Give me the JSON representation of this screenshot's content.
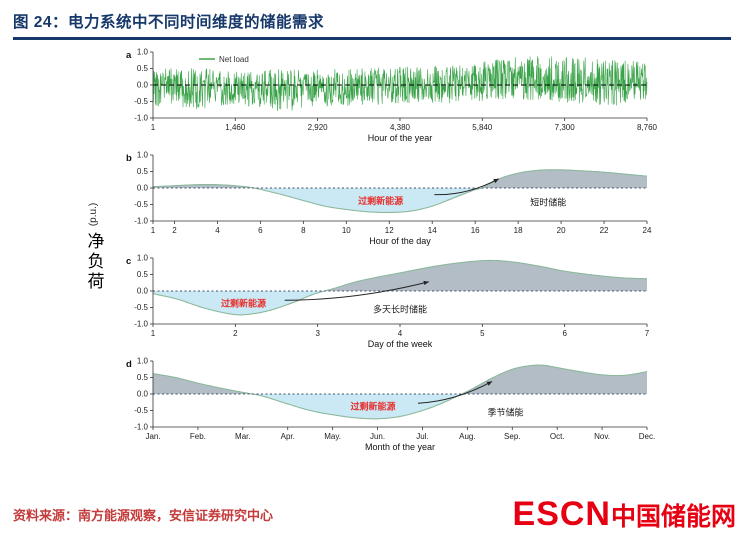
{
  "header": {
    "title": "图 24：电力系统中不同时间维度的储能需求"
  },
  "theme": {
    "accent": "#17386b",
    "source_red": "#c43b3b",
    "logo_red": "#e60012",
    "noise_green": "#2f9e3f",
    "fill_gray": "#b3bdc6",
    "fill_blue": "#cbe9f4",
    "curve_stroke": "#8cb99c",
    "axis_color": "#333333",
    "annotation_red": "#e8322f"
  },
  "axis_label": {
    "cn": "净负荷",
    "unit": "(p.u.)"
  },
  "footer": {
    "source": "资料来源：南方能源观察，安信证券研究中心",
    "logo_en": "ESCN",
    "logo_cn": "中国储能网"
  },
  "chart_data": [
    {
      "id": "a",
      "label": "a",
      "type": "line",
      "xlabel": "Hour of the year",
      "x_range": [
        1,
        8760
      ],
      "x_ticks": [
        {
          "v": 1,
          "t": "1"
        },
        {
          "v": 1460,
          "t": "1,460"
        },
        {
          "v": 2920,
          "t": "2,920"
        },
        {
          "v": 4380,
          "t": "4,380"
        },
        {
          "v": 5840,
          "t": "5,840"
        },
        {
          "v": 7300,
          "t": "7,300"
        },
        {
          "v": 8760,
          "t": "8,760"
        }
      ],
      "y_range": [
        -1,
        1
      ],
      "y_ticks": [
        {
          "v": 1,
          "t": "1.0"
        },
        {
          "v": 0.5,
          "t": "0.5"
        },
        {
          "v": 0,
          "t": "0.0"
        },
        {
          "v": -0.5,
          "t": "-0.5"
        },
        {
          "v": -1,
          "t": "-1.0"
        }
      ],
      "legend": [
        {
          "label": "Net load",
          "color": "#2f9e3f"
        }
      ],
      "zero_line": {
        "color": "#000000",
        "dash": "5 3"
      },
      "noise": {
        "seed": 20240521,
        "n": 1400,
        "color": "#2f9e3f",
        "env_x": [
          0,
          0.08,
          0.17,
          0.27,
          0.3,
          0.38,
          0.5,
          0.6,
          0.68,
          0.75,
          0.85,
          0.93,
          1
        ],
        "env_top": [
          0.5,
          0.55,
          0.45,
          0.5,
          0.45,
          0.5,
          0.55,
          0.6,
          0.75,
          0.9,
          0.85,
          0.8,
          0.7
        ],
        "env_bottom": [
          -0.65,
          -0.75,
          -0.6,
          -0.85,
          -0.7,
          -0.65,
          -0.6,
          -0.55,
          -0.5,
          -0.45,
          -0.55,
          -0.65,
          -0.55
        ]
      }
    },
    {
      "id": "b",
      "label": "b",
      "type": "area",
      "xlabel": "Hour of the day",
      "x_range": [
        1,
        24
      ],
      "x_ticks": [
        {
          "v": 1,
          "t": "1"
        },
        {
          "v": 2,
          "t": "2"
        },
        {
          "v": 4,
          "t": "4"
        },
        {
          "v": 6,
          "t": "6"
        },
        {
          "v": 8,
          "t": "8"
        },
        {
          "v": 10,
          "t": "10"
        },
        {
          "v": 12,
          "t": "12"
        },
        {
          "v": 14,
          "t": "14"
        },
        {
          "v": 16,
          "t": "16"
        },
        {
          "v": 18,
          "t": "18"
        },
        {
          "v": 20,
          "t": "20"
        },
        {
          "v": 22,
          "t": "22"
        },
        {
          "v": 24,
          "t": "24"
        }
      ],
      "y_range": [
        -1,
        1
      ],
      "y_ticks": [
        {
          "v": 1,
          "t": "1.0"
        },
        {
          "v": 0.5,
          "t": "0.5"
        },
        {
          "v": 0,
          "t": "0.0"
        },
        {
          "v": -0.5,
          "t": "-0.5"
        },
        {
          "v": -1,
          "t": "-1.0"
        }
      ],
      "zero_line": {
        "color": "#44506b",
        "dash": "2 2.5"
      },
      "curve": [
        [
          1,
          0.04
        ],
        [
          2,
          0.07
        ],
        [
          3,
          0.1
        ],
        [
          4,
          0.1
        ],
        [
          5,
          0.06
        ],
        [
          5.7,
          0
        ],
        [
          6.5,
          -0.12
        ],
        [
          7,
          -0.2
        ],
        [
          8,
          -0.38
        ],
        [
          9,
          -0.55
        ],
        [
          10,
          -0.65
        ],
        [
          11,
          -0.72
        ],
        [
          12,
          -0.74
        ],
        [
          13,
          -0.7
        ],
        [
          14,
          -0.55
        ],
        [
          15,
          -0.3
        ],
        [
          16,
          -0.05
        ],
        [
          16.3,
          0
        ],
        [
          17,
          0.25
        ],
        [
          18,
          0.45
        ],
        [
          19,
          0.54
        ],
        [
          20,
          0.55
        ],
        [
          21,
          0.52
        ],
        [
          22,
          0.48
        ],
        [
          23,
          0.42
        ],
        [
          24,
          0.36
        ]
      ],
      "annotations": [
        {
          "name": "excess-renewables-label-b",
          "text": "过剩新能源",
          "x": 11.6,
          "y": -0.4,
          "color": "#e8322f",
          "bold": true
        },
        {
          "name": "short-duration-storage-label",
          "text": "短时储能",
          "x": 19.4,
          "y": -0.44,
          "color": "#1a1a1a",
          "bold": false
        }
      ],
      "arrow": {
        "from": [
          14.1,
          -0.2
        ],
        "to": [
          17.1,
          0.28
        ]
      }
    },
    {
      "id": "c",
      "label": "c",
      "type": "area",
      "xlabel": "Day of the week",
      "x_range": [
        1,
        7
      ],
      "x_ticks": [
        {
          "v": 1,
          "t": "1"
        },
        {
          "v": 2,
          "t": "2"
        },
        {
          "v": 3,
          "t": "3"
        },
        {
          "v": 4,
          "t": "4"
        },
        {
          "v": 5,
          "t": "5"
        },
        {
          "v": 6,
          "t": "6"
        },
        {
          "v": 7,
          "t": "7"
        }
      ],
      "y_range": [
        -1,
        1
      ],
      "y_ticks": [
        {
          "v": 1,
          "t": "1.0"
        },
        {
          "v": 0.5,
          "t": "0.5"
        },
        {
          "v": 0,
          "t": "0.0"
        },
        {
          "v": -0.5,
          "t": "-0.5"
        },
        {
          "v": -1,
          "t": "-1.0"
        }
      ],
      "zero_line": {
        "color": "#44506b",
        "dash": "2 2.5"
      },
      "curve": [
        [
          1,
          -0.08
        ],
        [
          1.3,
          -0.25
        ],
        [
          1.6,
          -0.5
        ],
        [
          1.9,
          -0.68
        ],
        [
          2.1,
          -0.72
        ],
        [
          2.4,
          -0.6
        ],
        [
          2.7,
          -0.35
        ],
        [
          2.95,
          -0.1
        ],
        [
          3.2,
          0.08
        ],
        [
          3.5,
          0.3
        ],
        [
          4,
          0.55
        ],
        [
          4.5,
          0.78
        ],
        [
          5,
          0.92
        ],
        [
          5.3,
          0.9
        ],
        [
          5.7,
          0.75
        ],
        [
          6,
          0.6
        ],
        [
          6.4,
          0.47
        ],
        [
          6.7,
          0.4
        ],
        [
          7,
          0.37
        ]
      ],
      "annotations": [
        {
          "name": "excess-renewables-label-c",
          "text": "过剩新能源",
          "x": 2.1,
          "y": -0.38,
          "color": "#e8322f",
          "bold": true
        },
        {
          "name": "multiday-storage-label",
          "text": "多天长时储能",
          "x": 4.0,
          "y": -0.56,
          "color": "#1a1a1a",
          "bold": false
        }
      ],
      "arrow": {
        "from": [
          2.6,
          -0.28
        ],
        "to": [
          4.35,
          0.28
        ]
      }
    },
    {
      "id": "d",
      "label": "d",
      "type": "area",
      "xlabel": "Month of the year",
      "x_range": [
        1,
        12
      ],
      "x_ticks": [
        {
          "v": 1,
          "t": "Jan."
        },
        {
          "v": 2,
          "t": "Feb."
        },
        {
          "v": 3,
          "t": "Mar."
        },
        {
          "v": 4,
          "t": "Apr."
        },
        {
          "v": 5,
          "t": "May."
        },
        {
          "v": 6,
          "t": "Jun."
        },
        {
          "v": 7,
          "t": "Jul."
        },
        {
          "v": 8,
          "t": "Aug."
        },
        {
          "v": 9,
          "t": "Sep."
        },
        {
          "v": 10,
          "t": "Oct."
        },
        {
          "v": 11,
          "t": "Nov."
        },
        {
          "v": 12,
          "t": "Dec."
        }
      ],
      "y_range": [
        -1,
        1
      ],
      "y_ticks": [
        {
          "v": 1,
          "t": "1.0"
        },
        {
          "v": 0.5,
          "t": "0.5"
        },
        {
          "v": 0,
          "t": "0.0"
        },
        {
          "v": -0.5,
          "t": "-0.5"
        },
        {
          "v": -1,
          "t": "-1.0"
        }
      ],
      "zero_line": {
        "color": "#44506b",
        "dash": "2 2.5"
      },
      "curve": [
        [
          1,
          0.62
        ],
        [
          1.5,
          0.5
        ],
        [
          2,
          0.33
        ],
        [
          2.5,
          0.18
        ],
        [
          3,
          0.05
        ],
        [
          3.4,
          -0.05
        ],
        [
          4,
          -0.3
        ],
        [
          4.5,
          -0.5
        ],
        [
          5,
          -0.63
        ],
        [
          5.5,
          -0.72
        ],
        [
          6,
          -0.75
        ],
        [
          6.5,
          -0.68
        ],
        [
          7,
          -0.5
        ],
        [
          7.4,
          -0.3
        ],
        [
          7.8,
          -0.05
        ],
        [
          8.1,
          0.15
        ],
        [
          8.5,
          0.45
        ],
        [
          9,
          0.75
        ],
        [
          9.4,
          0.86
        ],
        [
          9.7,
          0.87
        ],
        [
          10,
          0.8
        ],
        [
          10.5,
          0.68
        ],
        [
          11,
          0.58
        ],
        [
          11.4,
          0.56
        ],
        [
          11.7,
          0.6
        ],
        [
          12,
          0.68
        ]
      ],
      "annotations": [
        {
          "name": "excess-renewables-label-d",
          "text": "过剩新能源",
          "x": 5.9,
          "y": -0.38,
          "color": "#e8322f",
          "bold": true
        },
        {
          "name": "seasonal-storage-label",
          "text": "季节储能",
          "x": 8.85,
          "y": -0.56,
          "color": "#1a1a1a",
          "bold": false
        }
      ],
      "arrow": {
        "from": [
          6.9,
          -0.28
        ],
        "to": [
          8.55,
          0.38
        ]
      }
    }
  ]
}
